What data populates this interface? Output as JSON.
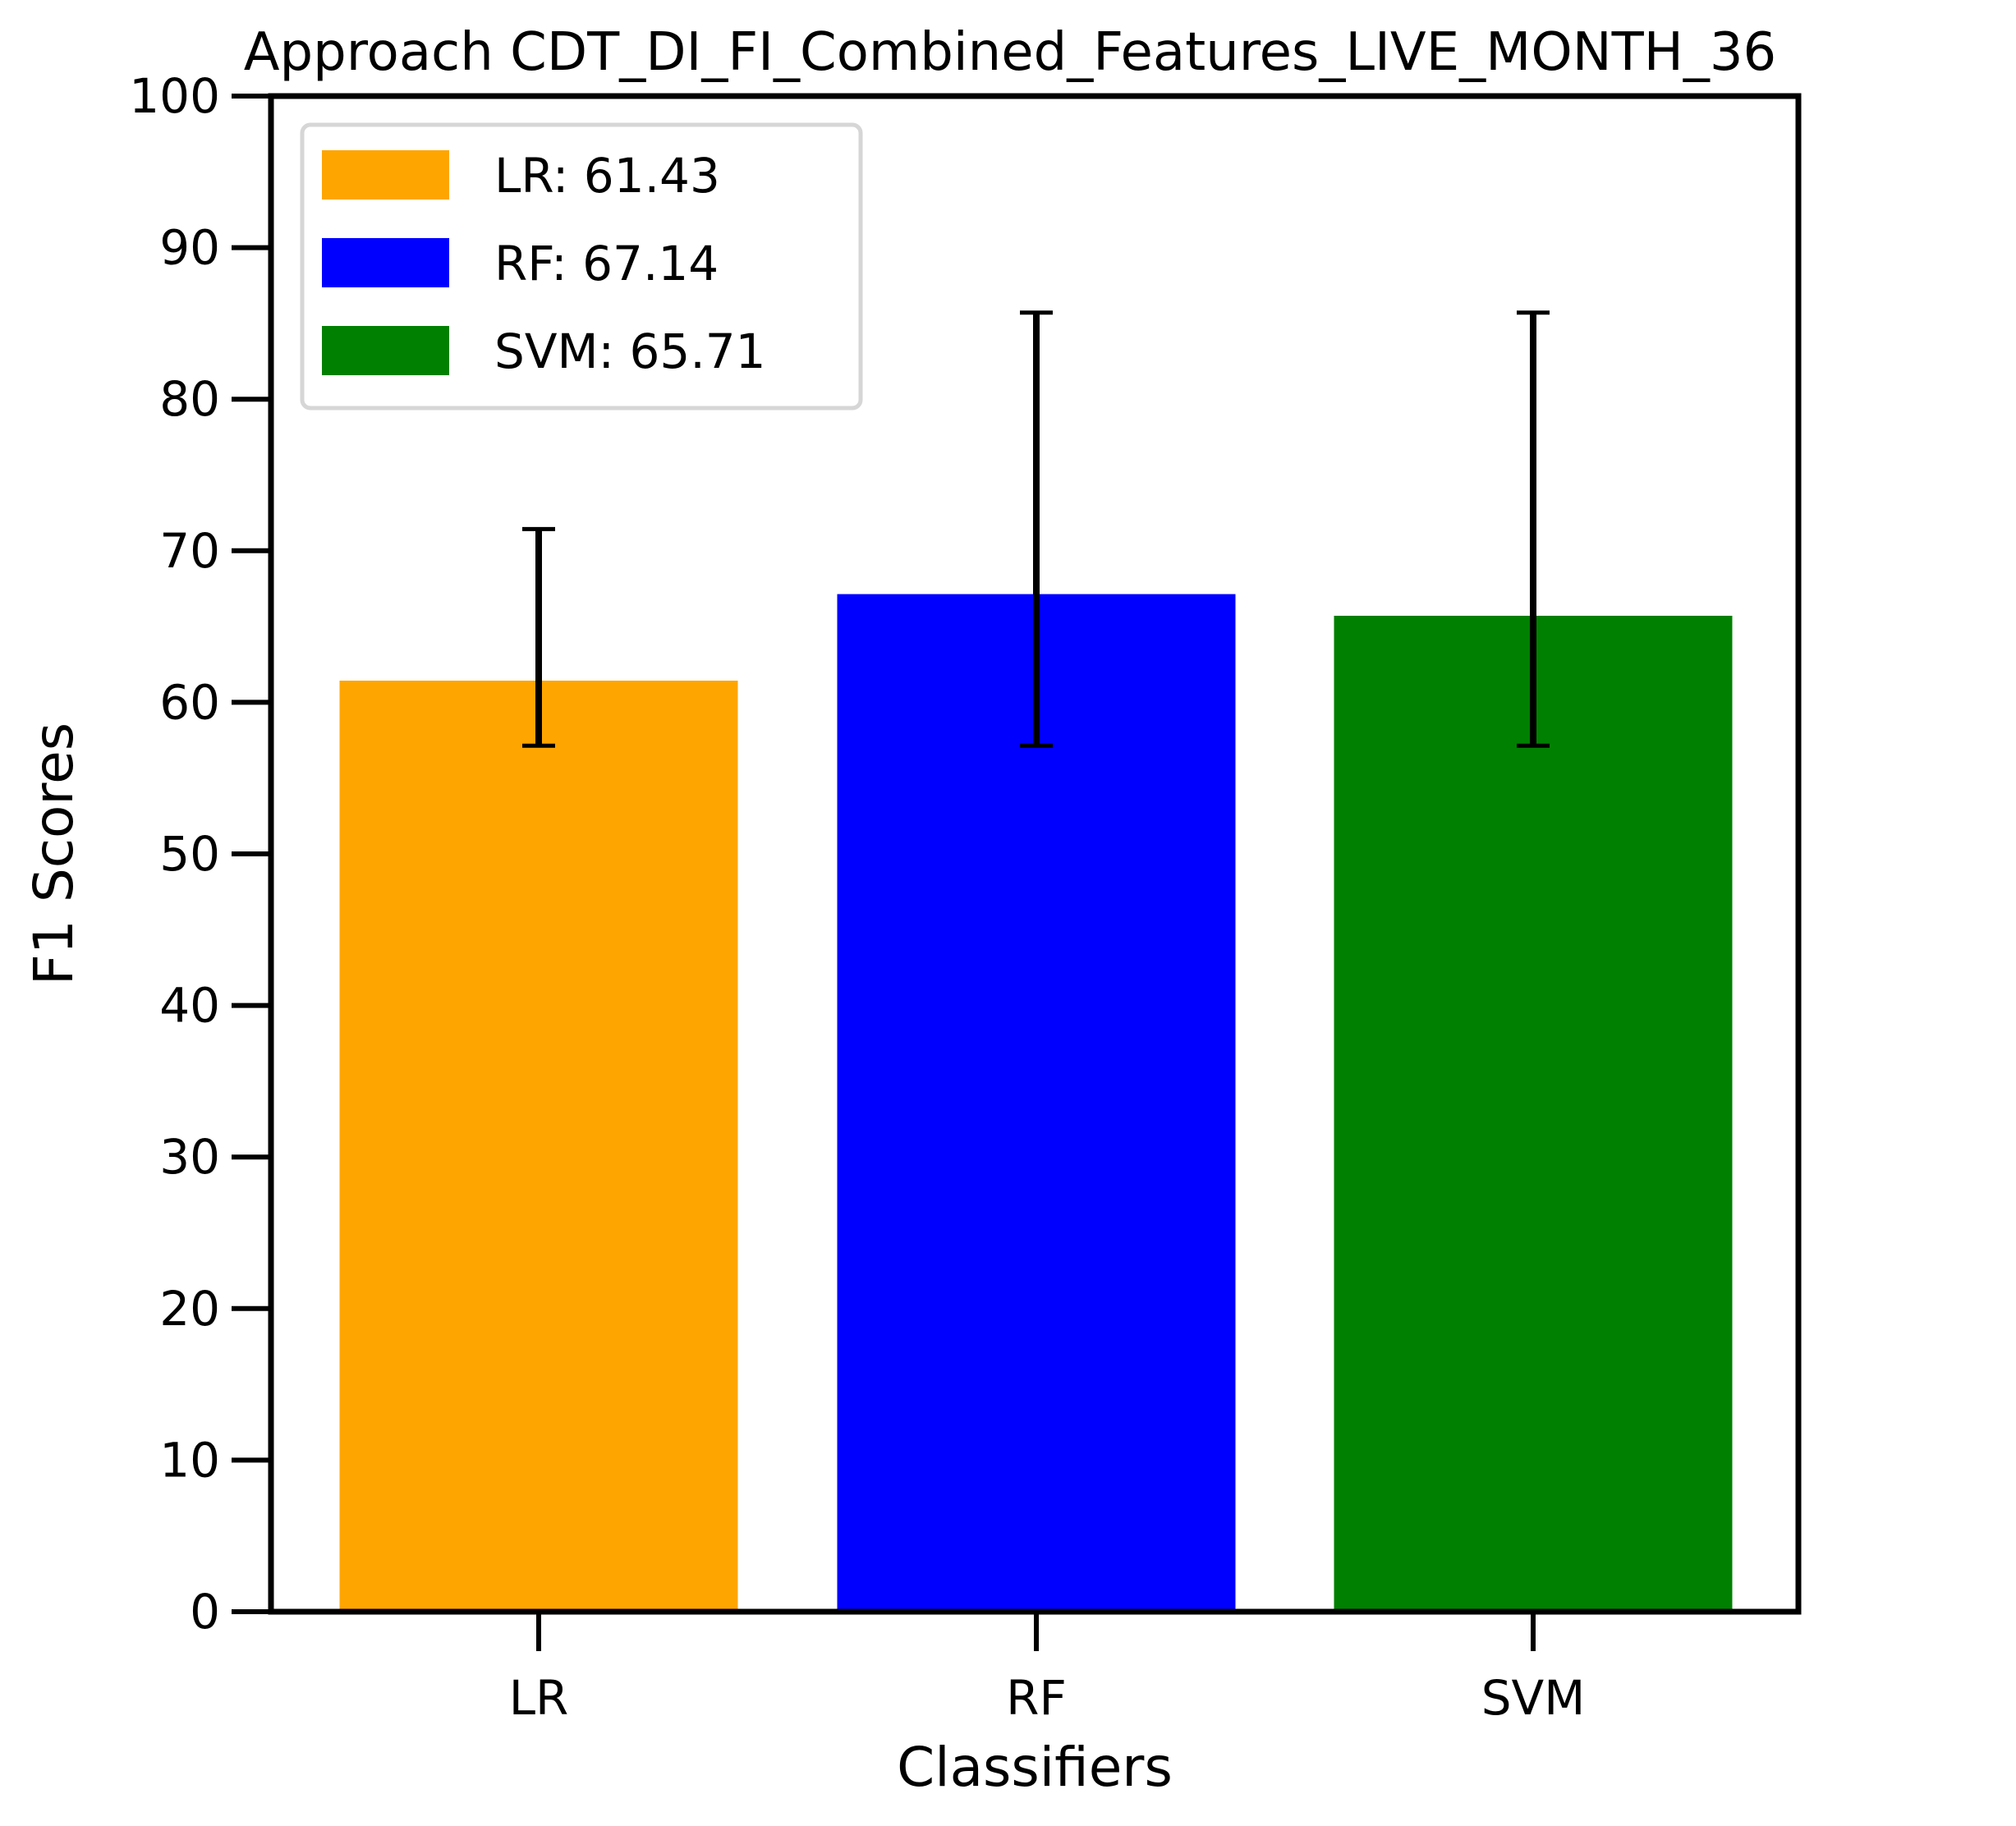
{
  "chart_data": {
    "type": "bar",
    "title": "Approach CDT_DI_FI_Combined_Features_LIVE_MONTH_36",
    "xlabel": "Classifiers",
    "ylabel": "F1 Scores",
    "ylim": [
      0,
      100
    ],
    "yticks": [
      "0",
      "10",
      "20",
      "30",
      "40",
      "50",
      "60",
      "70",
      "80",
      "90",
      "100"
    ],
    "categories": [
      "LR",
      "RF",
      "SVM"
    ],
    "values": [
      61.43,
      67.14,
      65.71
    ],
    "errors": [
      {
        "low": 57.14,
        "high": 71.43
      },
      {
        "low": 57.14,
        "high": 85.71
      },
      {
        "low": 57.14,
        "high": 85.71
      }
    ],
    "colors": [
      "#FFA500",
      "#0000FF",
      "#008000"
    ],
    "grid": false,
    "legend": {
      "placement": "top-left",
      "entries": [
        "LR: 61.43",
        "RF: 67.14",
        "SVM: 65.71"
      ]
    }
  }
}
